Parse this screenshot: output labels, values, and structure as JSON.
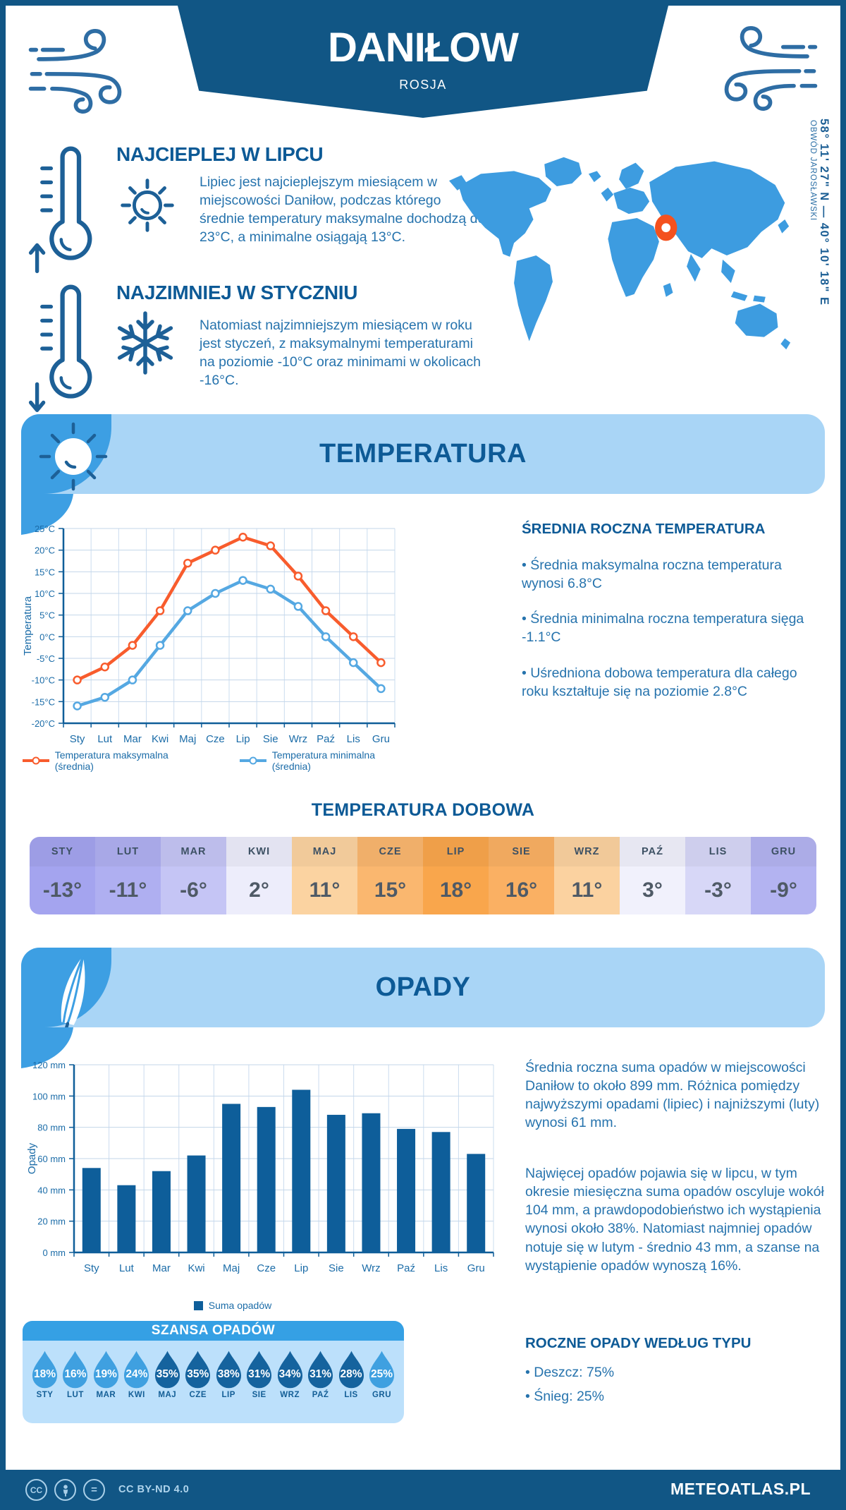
{
  "colors": {
    "dark": "#115685",
    "heading_blue": "#0D5A96",
    "body_blue": "#2673AD",
    "banner_bg": "#A9D5F6",
    "corner_blue": "#3D9FE3",
    "map_blue": "#3D9CE0",
    "marker_orange": "#F4511E",
    "drop_light": "#3FA0E0",
    "drop_dark": "#15639E"
  },
  "header": {
    "title": "DANIŁOW",
    "subtitle": "ROSJA"
  },
  "warm_section": {
    "heading": "NAJCIEPLEJ W LIPCU",
    "body": "Lipiec jest najcieplejszym miesiącem w miejscowości Daniłow, podczas którego średnie temperatury maksymalne dochodzą do 23°C, a minimalne osiągają 13°C."
  },
  "cold_section": {
    "heading": "NAJZIMNIEJ W STYCZNIU",
    "body": "Natomiast najzimniejszym miesiącem w roku jest styczeń, z maksymalnymi temperaturami na poziomie -10°C oraz minimami w okolicach -16°C."
  },
  "map": {
    "coordinates": "58° 11' 27\" N — 40° 10' 18\" E",
    "region": "OBWÓD JAROSŁAWSKI"
  },
  "temperature_section": {
    "banner": "TEMPERATURA",
    "annual_heading": "ŚREDNIA ROCZNA TEMPERATURA",
    "bullets": [
      "• Średnia maksymalna roczna temperatura wynosi 6.8°C",
      "• Średnia minimalna roczna temperatura sięga -1.1°C",
      "• Uśredniona dobowa temperatura dla całego roku kształtuje się na poziomie 2.8°C"
    ],
    "daily_heading": "TEMPERATURA DOBOWA"
  },
  "daily_temps": {
    "months": [
      "STY",
      "LUT",
      "MAR",
      "KWI",
      "MAJ",
      "CZE",
      "LIP",
      "SIE",
      "WRZ",
      "PAŹ",
      "LIS",
      "GRU"
    ],
    "values": [
      "-13°",
      "-11°",
      "-6°",
      "2°",
      "11°",
      "15°",
      "18°",
      "16°",
      "11°",
      "3°",
      "-3°",
      "-9°"
    ],
    "colors": [
      "#A4A4EF",
      "#AFAFF1",
      "#C5C5F5",
      "#EDEDFB",
      "#FBD3A1",
      "#FAB76F",
      "#F9A64C",
      "#FAB063",
      "#FBD2A0",
      "#F1F1FC",
      "#D7D7F7",
      "#B3B3F1"
    ]
  },
  "precipitation_section": {
    "banner": "OPADY",
    "paragraph1": "Średnia roczna suma opadów w miejscowości Daniłow to około 899 mm. Różnica pomiędzy najwyższymi opadami (lipiec) i najniższymi (luty) wynosi 61 mm.",
    "paragraph2": "Najwięcej opadów pojawia się w lipcu, w tym okresie miesięczna suma opadów oscyluje wokół 104 mm, a prawdopodobieństwo ich wystąpienia wynosi około 38%. Natomiast najmniej opadów notuje się w lutym - średnio 43 mm, a szanse na wystąpienie opadów wynoszą 16%.",
    "type_heading": "ROCZNE OPADY WEDŁUG TYPU",
    "type_bullets": [
      "• Deszcz: 75%",
      "• Śnieg: 25%"
    ]
  },
  "precip_chance": {
    "heading": "SZANSA OPADÓW",
    "months": [
      "STY",
      "LUT",
      "MAR",
      "KWI",
      "MAJ",
      "CZE",
      "LIP",
      "SIE",
      "WRZ",
      "PAŹ",
      "LIS",
      "GRU"
    ],
    "values": [
      "18%",
      "16%",
      "19%",
      "24%",
      "35%",
      "35%",
      "38%",
      "31%",
      "34%",
      "31%",
      "28%",
      "25%"
    ],
    "dark": [
      false,
      false,
      false,
      false,
      true,
      true,
      true,
      true,
      true,
      true,
      true,
      false
    ]
  },
  "footer": {
    "license": "CC BY-ND 4.0",
    "site": "METEOATLAS.PL"
  },
  "chart_data": [
    {
      "type": "line",
      "x": [
        "Sty",
        "Lut",
        "Mar",
        "Kwi",
        "Maj",
        "Cze",
        "Lip",
        "Sie",
        "Wrz",
        "Paź",
        "Lis",
        "Gru"
      ],
      "ylabel": "Temperatura",
      "ylim": [
        -20,
        25
      ],
      "ytick_step": 5,
      "ytick_suffix": "°C",
      "grid": true,
      "legend_position": "bottom",
      "series": [
        {
          "name": "Temperatura maksymalna (średnia)",
          "color": "#F85C2D",
          "values": [
            -10,
            -7,
            -2,
            6,
            17,
            20,
            23,
            21,
            14,
            6,
            0,
            -6
          ]
        },
        {
          "name": "Temperatura minimalna (średnia)",
          "color": "#55A8E2",
          "values": [
            -16,
            -14,
            -10,
            -2,
            6,
            10,
            13,
            11,
            7,
            0,
            -6,
            -12
          ]
        }
      ]
    },
    {
      "type": "bar",
      "x": [
        "Sty",
        "Lut",
        "Mar",
        "Kwi",
        "Maj",
        "Cze",
        "Lip",
        "Sie",
        "Wrz",
        "Paź",
        "Lis",
        "Gru"
      ],
      "ylabel": "Opady",
      "ylim": [
        0,
        120
      ],
      "ytick_step": 20,
      "ytick_suffix": " mm",
      "grid": true,
      "legend_position": "bottom",
      "series": [
        {
          "name": "Suma opadów",
          "color": "#0E5E9A",
          "values": [
            54,
            43,
            52,
            62,
            95,
            93,
            104,
            88,
            89,
            79,
            77,
            63
          ]
        }
      ]
    }
  ]
}
